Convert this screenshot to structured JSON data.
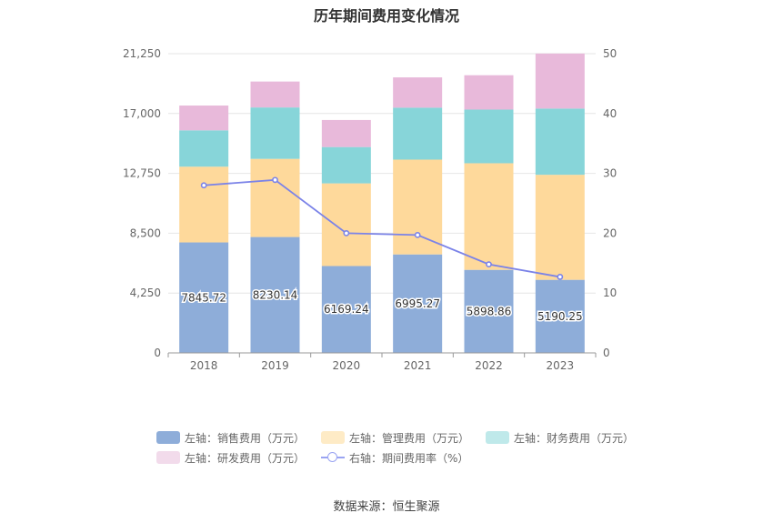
{
  "title": "历年期间费用变化情况",
  "source": "数据来源：恒生聚源",
  "chart_data": {
    "type": "bar",
    "stacked": true,
    "categories": [
      "2018",
      "2019",
      "2020",
      "2021",
      "2022",
      "2023"
    ],
    "series": [
      {
        "name": "左轴：销售费用（万元）",
        "axis": "left",
        "color": "#8eadd9",
        "values": [
          7845.72,
          8230.14,
          6169.24,
          6995.27,
          5898.86,
          5190.25
        ],
        "labels": [
          "7845.72",
          "8230.14",
          "6169.24",
          "6995.27",
          "5898.86",
          "5190.25"
        ]
      },
      {
        "name": "左轴：管理费用（万元）",
        "axis": "left",
        "color": "#fed99b",
        "legend_color": "#feebc6",
        "values": [
          5380,
          5550,
          5870,
          6730,
          7570,
          7460
        ]
      },
      {
        "name": "左轴：财务费用（万元）",
        "axis": "left",
        "color": "#87d5d9",
        "legend_color": "#bfe9ea",
        "values": [
          2580,
          3650,
          2580,
          3690,
          3810,
          4700
        ]
      },
      {
        "name": "左轴：研发费用（万元）",
        "axis": "left",
        "color": "#e8b9da",
        "legend_color": "#f2dbeb",
        "values": [
          1760,
          1840,
          1920,
          2150,
          2440,
          3910
        ]
      }
    ],
    "line_series": {
      "name": "右轴：期间费用率（%）",
      "axis": "right",
      "color": "#7b83e8",
      "values": [
        28.0,
        28.9,
        20.0,
        19.7,
        14.8,
        12.7
      ]
    },
    "left_axis": {
      "min": 0,
      "max": 21250,
      "ticks": [
        "0",
        "4,250",
        "8,500",
        "12,750",
        "17,000",
        "21,250"
      ]
    },
    "right_axis": {
      "min": 0,
      "max": 50,
      "ticks": [
        "0",
        "10",
        "20",
        "30",
        "40",
        "50"
      ]
    },
    "grid": true,
    "legend_position": "bottom"
  }
}
